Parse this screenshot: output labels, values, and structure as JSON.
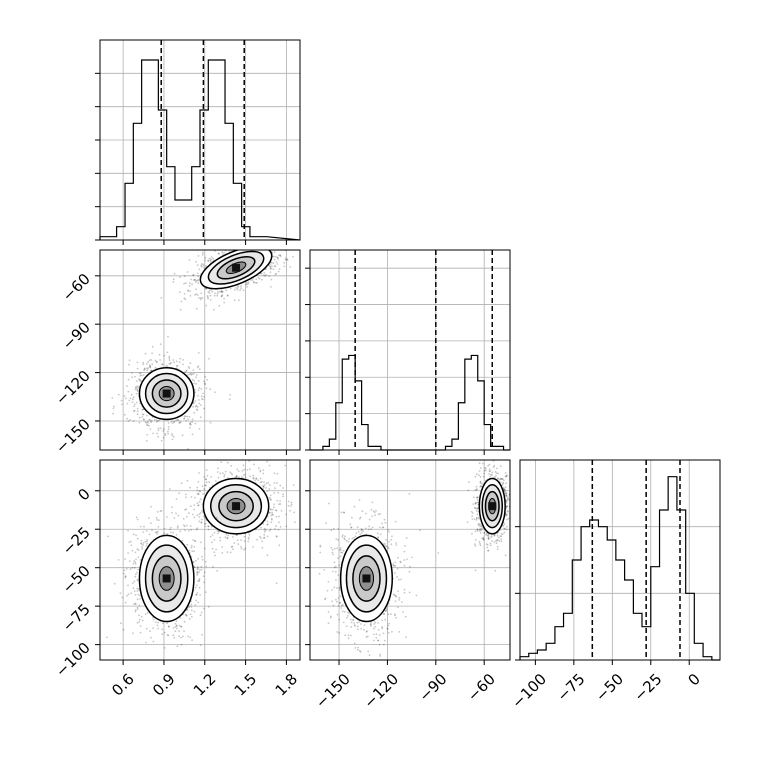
{
  "figure": {
    "background": "#ffffff",
    "grid": true,
    "grid_color": "#b0b0b0",
    "line_color": "#000000"
  },
  "chart_data": [
    {
      "panel": "p00",
      "type": "histogram",
      "variable": 0,
      "bins_x": [
        0.43,
        0.491,
        0.552,
        0.614,
        0.675,
        0.736,
        0.797,
        0.859,
        0.92,
        0.981,
        1.042,
        1.104,
        1.165,
        1.226,
        1.287,
        1.349,
        1.41,
        1.471,
        1.532,
        1.594,
        1.655,
        1.716,
        1.777,
        1.839,
        1.9
      ],
      "counts": [
        1,
        1,
        4,
        17,
        35,
        54,
        54,
        39,
        22,
        12,
        12,
        22,
        39,
        54,
        54,
        35,
        17,
        4,
        1,
        1
      ],
      "quantile_lines": [
        0.88,
        1.19,
        1.49
      ],
      "x_range": [
        0.43,
        1.9
      ],
      "y_range": [
        0,
        60
      ],
      "x_ticks": [
        0.6,
        0.9,
        1.2,
        1.5,
        1.8
      ],
      "y_ticks": [
        0,
        10,
        20,
        30,
        40,
        50
      ]
    },
    {
      "panel": "p11",
      "type": "histogram",
      "variable": 1,
      "bins_x": [
        -168,
        -164,
        -160,
        -156,
        -152,
        -148,
        -144,
        -140,
        -136,
        -132,
        -128,
        -124,
        -120,
        -116,
        -112,
        -108,
        -104,
        -100,
        -96,
        -92,
        -88,
        -84,
        -80,
        -76,
        -72,
        -68,
        -64,
        -60,
        -56,
        -52,
        -48,
        -44
      ],
      "counts": [
        0,
        0,
        1,
        3,
        13,
        25,
        26,
        19,
        7,
        1,
        1,
        0,
        0,
        0,
        0,
        0,
        0,
        0,
        0,
        0,
        0,
        1,
        3,
        13,
        25,
        26,
        19,
        7,
        1,
        1,
        0
      ],
      "quantile_lines": [
        -140,
        -90,
        -55
      ],
      "x_range": [
        -168,
        -44
      ],
      "y_range": [
        0,
        55
      ],
      "x_ticks": [
        -150,
        -120,
        -90,
        -60
      ],
      "y_ticks": [
        0,
        10,
        20,
        30,
        40,
        50
      ]
    },
    {
      "panel": "p22",
      "type": "histogram",
      "variable": 2,
      "bins_x": [
        -110,
        -104.3,
        -98.7,
        -93,
        -87.3,
        -81.7,
        -76,
        -70.3,
        -64.7,
        -59,
        -53.3,
        -47.7,
        -42,
        -36.3,
        -30.7,
        -25,
        -19.3,
        -13.7,
        -8,
        -2.3,
        3.3,
        9,
        14.7,
        20
      ],
      "counts": [
        1,
        2,
        3,
        5,
        10,
        14,
        30,
        40,
        42,
        40,
        36,
        30,
        24,
        14,
        10,
        28,
        45,
        55,
        45,
        20,
        5,
        1,
        0
      ],
      "quantile_lines": [
        -63,
        -28,
        -6
      ],
      "x_range": [
        -110,
        20
      ],
      "y_range": [
        0,
        60
      ],
      "x_ticks": [
        -100,
        -75,
        -50,
        -25,
        0
      ],
      "y_ticks": [
        0,
        20,
        40
      ]
    },
    {
      "panel": "p10",
      "type": "scatter_density",
      "x_var": 0,
      "y_var": 1,
      "clusters": [
        {
          "cx": 1.43,
          "cy": -55,
          "sx": 0.14,
          "sy": 5,
          "rot": -0.4,
          "n": 900
        },
        {
          "cx": 0.92,
          "cy": -133,
          "sx": 0.1,
          "sy": 8,
          "rot": 0,
          "n": 900
        }
      ],
      "x_range": [
        0.43,
        1.9
      ],
      "y_range": [
        -168,
        -44
      ],
      "x_ticks": [
        0.6,
        0.9,
        1.2,
        1.5,
        1.8
      ],
      "y_ticks": [
        -60,
        -90,
        -120,
        -150
      ]
    },
    {
      "panel": "p20",
      "type": "scatter_density",
      "x_var": 0,
      "y_var": 2,
      "clusters": [
        {
          "cx": 1.43,
          "cy": -10,
          "sx": 0.12,
          "sy": 9,
          "rot": 0,
          "n": 900
        },
        {
          "cx": 0.92,
          "cy": -57,
          "sx": 0.1,
          "sy": 14,
          "rot": 0,
          "n": 900
        }
      ],
      "x_range": [
        0.43,
        1.9
      ],
      "y_range": [
        -110,
        20
      ],
      "x_ticks": [
        0.6,
        0.9,
        1.2,
        1.5,
        1.8
      ],
      "y_ticks": [
        0,
        -25,
        -50,
        -75,
        -100
      ]
    },
    {
      "panel": "p21",
      "type": "scatter_density",
      "x_var": 1,
      "y_var": 2,
      "clusters": [
        {
          "cx": -55,
          "cy": -10,
          "sx": 4,
          "sy": 9,
          "rot": 0,
          "n": 900
        },
        {
          "cx": -133,
          "cy": -57,
          "sx": 8,
          "sy": 14,
          "rot": 0,
          "n": 900
        }
      ],
      "x_range": [
        -168,
        -44
      ],
      "y_range": [
        -110,
        20
      ],
      "x_ticks": [
        -150,
        -120,
        -90,
        -60
      ],
      "y_ticks": [
        0,
        -25,
        -50,
        -75,
        -100
      ]
    }
  ],
  "tick_labels": {
    "v0": [
      "0.6",
      "0.9",
      "1.2",
      "1.5",
      "1.8"
    ],
    "v1": [
      "−150",
      "−120",
      "−90",
      "−60"
    ],
    "v1_left": [
      "−60",
      "−90",
      "−120",
      "−150"
    ],
    "v2": [
      "−100",
      "−75",
      "−50",
      "−25",
      "0"
    ],
    "v2_left": [
      "0",
      "−25",
      "−50",
      "−75",
      "−100"
    ]
  }
}
